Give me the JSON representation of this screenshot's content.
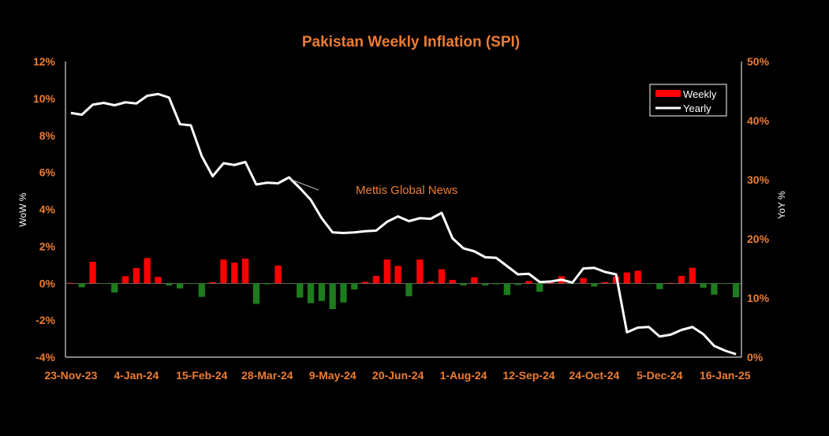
{
  "chart_data": {
    "type": "bar+line",
    "title": "Pakistan Weekly Inflation (SPI)",
    "ylabel_left": "WoW %",
    "ylabel_right": "YoY %",
    "ylim_left": [
      -4,
      12
    ],
    "ylim_right": [
      0,
      50
    ],
    "yticks_left": [
      "-4%",
      "-2%",
      "0%",
      "2%",
      "4%",
      "6%",
      "8%",
      "10%",
      "12%"
    ],
    "yticks_right": [
      "0%",
      "10%",
      "20%",
      "30%",
      "40%",
      "50%"
    ],
    "xtick_labels": [
      "23-Nov-23",
      "4-Jan-24",
      "15-Feb-24",
      "28-Mar-24",
      "9-May-24",
      "20-Jun-24",
      "1-Aug-24",
      "12-Sep-24",
      "24-Oct-24",
      "5-Dec-24",
      "16-Jan-25"
    ],
    "legend": {
      "position": "top-right",
      "entries": [
        "Weekly",
        "Yearly"
      ]
    },
    "annotation": "Mettis Global News",
    "colors": {
      "positive": "#ff0000",
      "negative": "#1e7b1e",
      "line": "#ffffff",
      "text": "#ed7d31",
      "title": "#ed7d31"
    },
    "series": [
      {
        "name": "Weekly",
        "kind": "bar",
        "values": [
          0.02,
          -0.22,
          1.16,
          -0.04,
          -0.5,
          0.38,
          0.82,
          1.36,
          0.34,
          -0.12,
          -0.28,
          -0.04,
          -0.74,
          0.06,
          1.28,
          1.12,
          1.34,
          -1.12,
          -0.06,
          0.96,
          -0.02,
          -0.78,
          -1.08,
          -0.96,
          -1.4,
          -1.04,
          -0.34,
          0.08,
          0.4,
          1.28,
          0.94,
          -0.7,
          1.28,
          0.08,
          0.76,
          0.18,
          -0.12,
          0.32,
          -0.12,
          -0.06,
          -0.64,
          -0.1,
          0.12,
          -0.46,
          0.12,
          0.38,
          -0.04,
          0.28,
          -0.18,
          0.06,
          0.36,
          0.58,
          0.68,
          -0.04,
          -0.32,
          0.02,
          0.4,
          0.84,
          -0.24,
          -0.62,
          -0.04,
          -0.76
        ]
      },
      {
        "name": "Yearly",
        "kind": "line",
        "values": [
          41.3,
          41.0,
          42.7,
          43.0,
          42.6,
          43.1,
          42.9,
          44.2,
          44.5,
          43.9,
          39.4,
          39.2,
          34.0,
          30.6,
          32.8,
          32.5,
          33.0,
          29.2,
          29.5,
          29.4,
          30.4,
          28.6,
          26.6,
          23.5,
          21.1,
          21.0,
          21.1,
          21.3,
          21.4,
          22.9,
          23.8,
          23.0,
          23.5,
          23.4,
          24.4,
          20.1,
          18.4,
          17.9,
          16.9,
          16.8,
          15.4,
          14.0,
          14.1,
          12.7,
          12.8,
          13.1,
          12.6,
          15.0,
          15.1,
          14.4,
          14.0,
          4.2,
          5.0,
          5.1,
          3.5,
          3.8,
          4.6,
          5.1,
          3.9,
          1.9,
          1.1,
          0.5
        ]
      }
    ]
  }
}
